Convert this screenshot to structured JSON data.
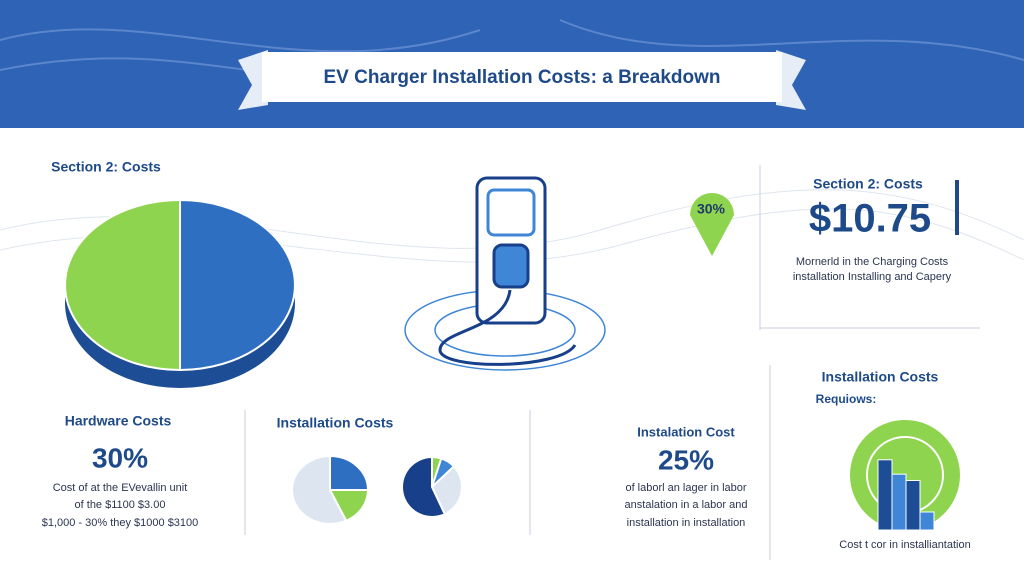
{
  "header": {
    "title": "EV Charger Installation Costs: a Breakdown"
  },
  "main_pie": {
    "label": "Section 2: Costs",
    "values": [
      50,
      50
    ],
    "colors": [
      "#2f6fc2",
      "#8fd44e"
    ]
  },
  "badge": {
    "text": "30%"
  },
  "summary": {
    "section": "Section 2: Costs",
    "amount": "$10.75",
    "lines": [
      "Mornerld in the Charging Costs",
      "installation Installing and Capery"
    ]
  },
  "cards": [
    {
      "title": "Hardware Costs",
      "value": "30%",
      "lines": [
        "Cost of at the EVevallin unit",
        "of the $1100 $3.00",
        "$1,000 - 30% they $1000 $3100"
      ]
    },
    {
      "title": "Installation Costs",
      "pies": [
        {
          "values": [
            25,
            18,
            57
          ],
          "colors": [
            "#2f6fc2",
            "#8fd44e",
            "#dde6f0"
          ]
        },
        {
          "values": [
            5,
            8,
            30,
            57
          ],
          "colors": [
            "#8fd44e",
            "#3f86d6",
            "#dde6f0",
            "#173f8a"
          ]
        }
      ]
    },
    {
      "title": "Instalation Cost",
      "value": "25%",
      "lines": [
        "of laborl an lager in labor",
        "anstalation in a labor and",
        "installation in installation"
      ]
    }
  ],
  "right_panel": {
    "title": "Installation Costs",
    "subtitle": "Requiows:",
    "bars": [
      78,
      62,
      55,
      20
    ],
    "caption": "Cost t cor in installiantation"
  }
}
